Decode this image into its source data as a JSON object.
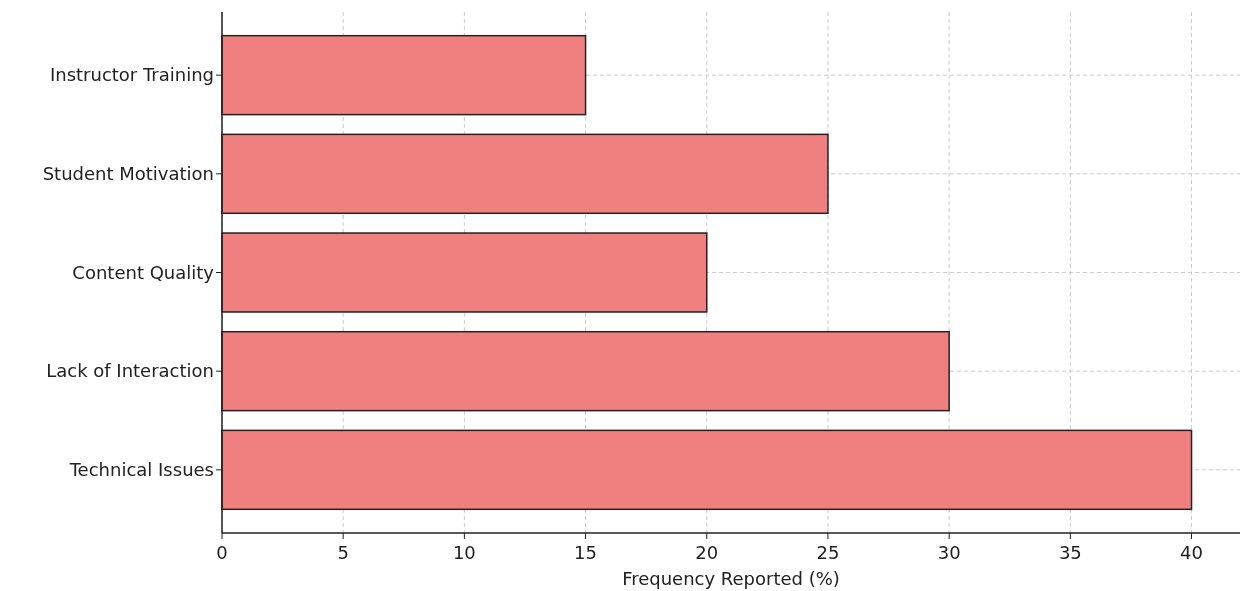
{
  "chart_data": {
    "type": "bar",
    "orientation": "horizontal",
    "xlabel": "Frequency Reported (%)",
    "categories": [
      "Instructor Training",
      "Student Motivation",
      "Content Quality",
      "Lack of Interaction",
      "Technical Issues"
    ],
    "values": [
      15,
      25,
      20,
      30,
      40
    ],
    "color": "#f08080",
    "xlim": [
      0,
      42
    ],
    "xticks": [
      0,
      5,
      10,
      15,
      20,
      25,
      30,
      35,
      40
    ],
    "grid": true
  }
}
